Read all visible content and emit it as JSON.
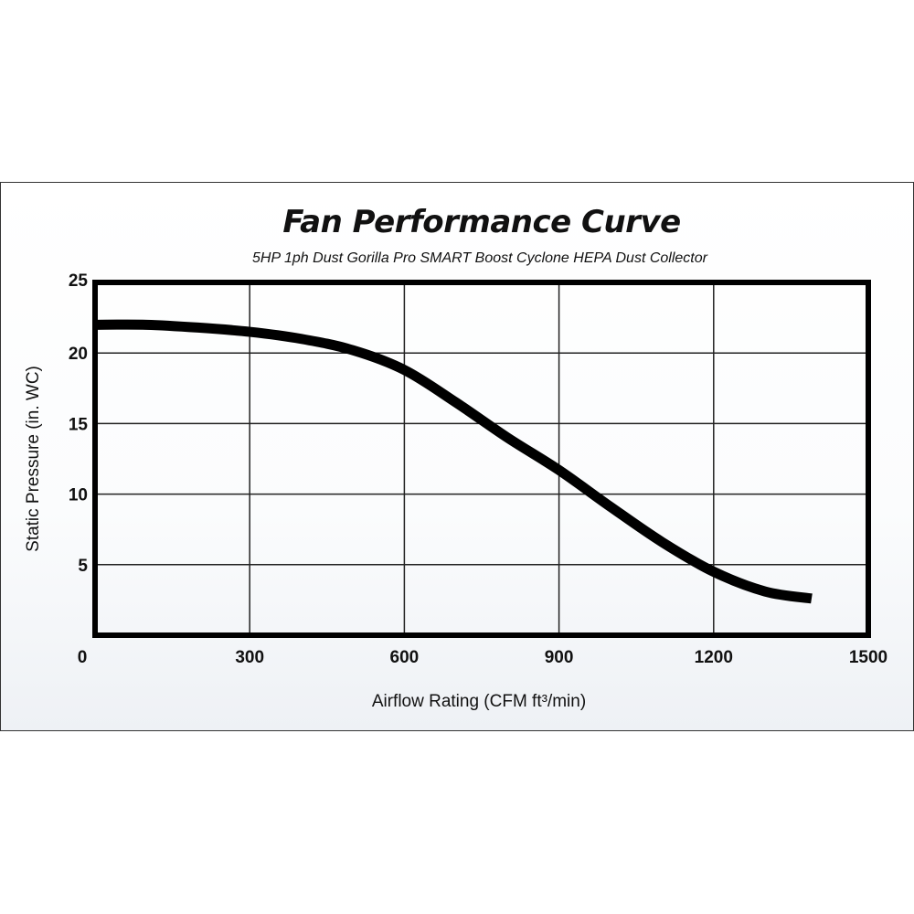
{
  "chart_data": {
    "type": "line",
    "title": "Fan Performance Curve",
    "subtitle": "5HP 1ph Dust Gorilla Pro SMART Boost Cyclone HEPA Dust Collector",
    "xlabel": "Airflow Rating (CFM ft³/min)",
    "ylabel": "Static Pressure (in. WC)",
    "xlim": [
      0,
      1500
    ],
    "ylim": [
      0,
      25
    ],
    "xticks": [
      "0",
      "300",
      "600",
      "900",
      "1200",
      "1500"
    ],
    "yticks": [
      "5",
      "10",
      "15",
      "20",
      "25"
    ],
    "grid": true,
    "legend": "none",
    "series": [
      {
        "color": "#000000",
        "x": [
          0,
          100,
          200,
          300,
          400,
          500,
          600,
          700,
          800,
          900,
          1000,
          1100,
          1200,
          1300,
          1390
        ],
        "y": [
          22.0,
          22.0,
          21.8,
          21.5,
          21.0,
          20.2,
          18.8,
          16.5,
          14.0,
          11.7,
          9.1,
          6.6,
          4.5,
          3.1,
          2.6
        ]
      }
    ]
  }
}
